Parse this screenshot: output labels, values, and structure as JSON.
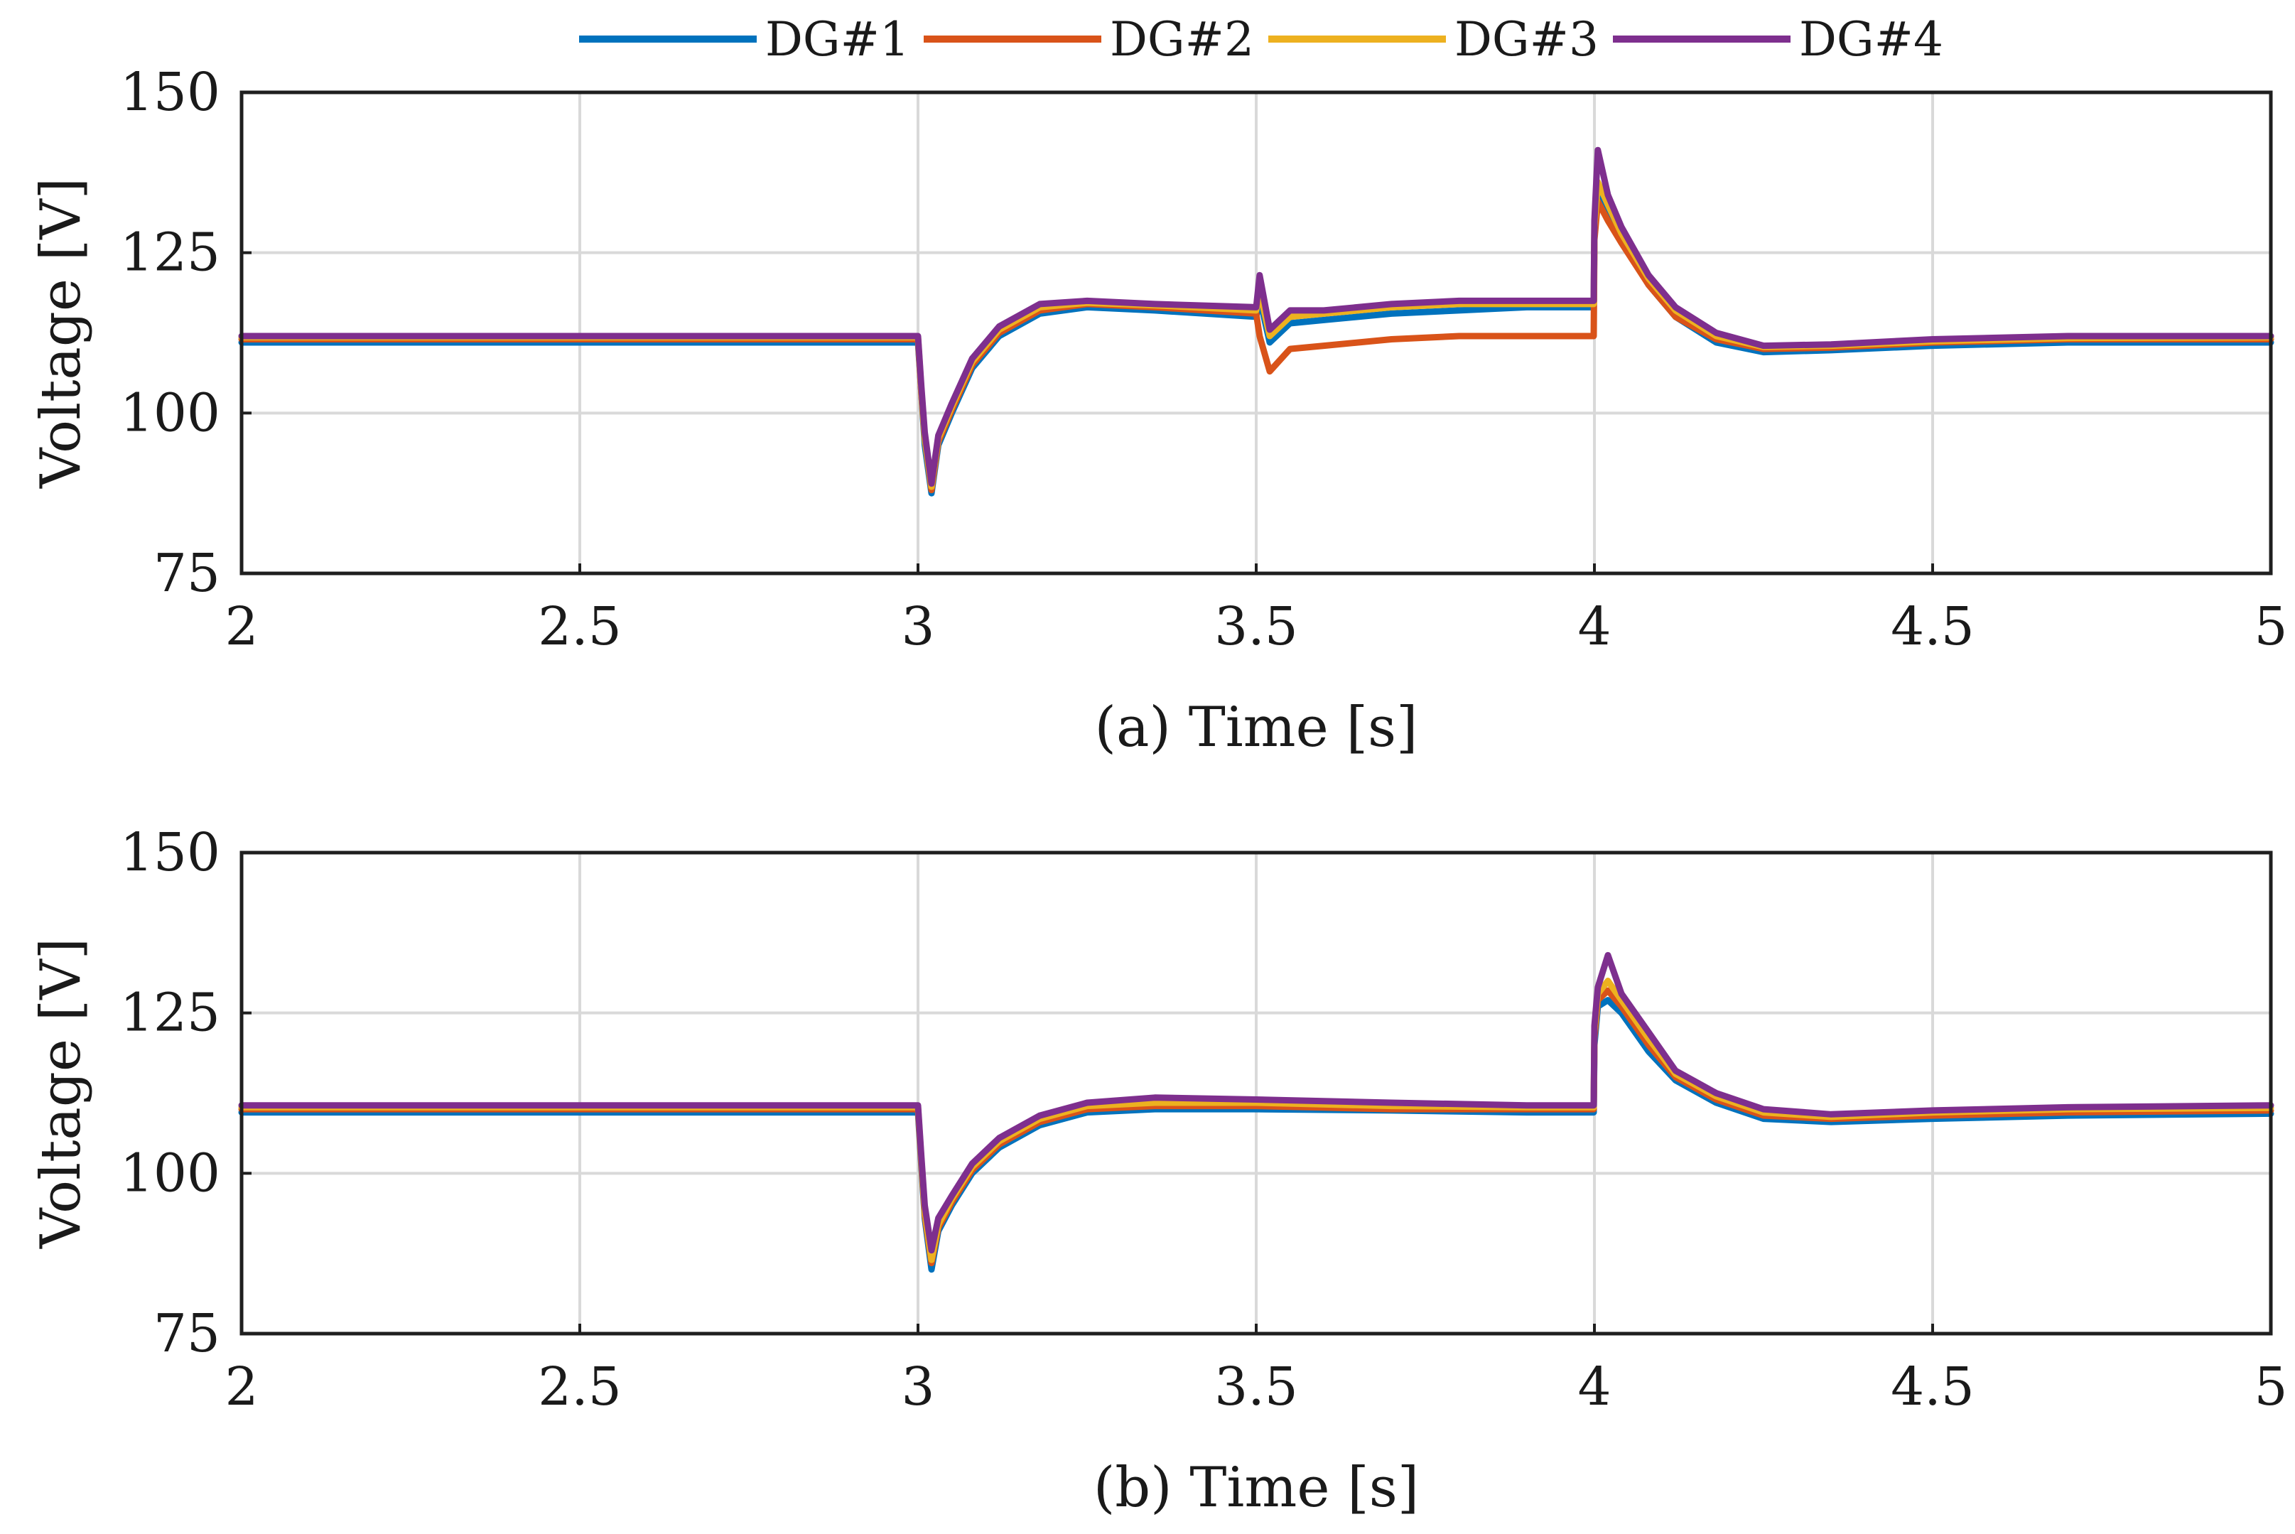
{
  "legend": [
    {
      "name": "DG#1",
      "color": "#0072BD"
    },
    {
      "name": "DG#2",
      "color": "#D95319"
    },
    {
      "name": "DG#3",
      "color": "#EDB120"
    },
    {
      "name": "DG#4",
      "color": "#7E2F8E"
    }
  ],
  "chart_data": [
    {
      "type": "line",
      "panel": "a",
      "xlabel": "(a) Time [s]",
      "ylabel": "Voltage [V]",
      "xlim": [
        2,
        5
      ],
      "ylim": [
        75,
        150
      ],
      "xticks": [
        "2",
        "2.5",
        "3",
        "3.5",
        "4",
        "4.5",
        "5"
      ],
      "yticks": [
        "75",
        "100",
        "125",
        "150"
      ],
      "grid": true,
      "series": [
        {
          "name": "DG#1",
          "color": "#0072BD",
          "x": [
            2.0,
            3.0,
            3.005,
            3.01,
            3.02,
            3.03,
            3.05,
            3.08,
            3.12,
            3.18,
            3.25,
            3.35,
            3.5,
            3.505,
            3.52,
            3.55,
            3.6,
            3.7,
            3.8,
            3.9,
            3.999,
            4.0,
            4.005,
            4.02,
            4.04,
            4.08,
            4.12,
            4.18,
            4.25,
            4.35,
            4.5,
            4.7,
            5.0
          ],
          "y": [
            111,
            111,
            103,
            95,
            87.5,
            95,
            100,
            107,
            112,
            115.5,
            116.5,
            116,
            115,
            118,
            111,
            114,
            114.5,
            115.5,
            116,
            116.5,
            116.5,
            128,
            134,
            131,
            127,
            120,
            115,
            111,
            109.5,
            109.8,
            110.5,
            111,
            111
          ]
        },
        {
          "name": "DG#2",
          "color": "#D95319",
          "x": [
            2.0,
            3.0,
            3.005,
            3.01,
            3.02,
            3.03,
            3.05,
            3.08,
            3.12,
            3.18,
            3.25,
            3.35,
            3.5,
            3.505,
            3.52,
            3.55,
            3.6,
            3.7,
            3.8,
            3.9,
            3.999,
            4.0,
            4.005,
            4.02,
            4.04,
            4.08,
            4.12,
            4.18,
            4.25,
            4.35,
            4.5,
            4.7,
            5.0
          ],
          "y": [
            111.5,
            111.5,
            103,
            96,
            88,
            95.5,
            100.5,
            107.5,
            112.5,
            116,
            117,
            116.5,
            115.5,
            112,
            106.5,
            110,
            110.5,
            111.5,
            112,
            112,
            112,
            127,
            133,
            130,
            126.5,
            120,
            115,
            111.5,
            110,
            110.2,
            111,
            111.5,
            111.5
          ]
        },
        {
          "name": "DG#3",
          "color": "#EDB120",
          "x": [
            2.0,
            3.0,
            3.005,
            3.01,
            3.02,
            3.03,
            3.05,
            3.08,
            3.12,
            3.18,
            3.25,
            3.35,
            3.5,
            3.505,
            3.52,
            3.55,
            3.6,
            3.7,
            3.8,
            3.9,
            3.999,
            4.0,
            4.005,
            4.02,
            4.04,
            4.08,
            4.12,
            4.18,
            4.25,
            4.35,
            4.5,
            4.7,
            5.0
          ],
          "y": [
            111.8,
            111.8,
            103.5,
            96,
            88.5,
            96,
            101,
            108,
            113,
            116.5,
            117.2,
            116.8,
            116,
            119,
            112,
            115,
            115.5,
            116.5,
            117,
            117,
            117,
            129,
            136,
            132.5,
            128,
            121,
            116,
            112,
            110.3,
            110.5,
            111.2,
            111.7,
            111.8
          ]
        },
        {
          "name": "DG#4",
          "color": "#7E2F8E",
          "x": [
            2.0,
            3.0,
            3.005,
            3.01,
            3.02,
            3.03,
            3.05,
            3.08,
            3.12,
            3.18,
            3.25,
            3.35,
            3.5,
            3.505,
            3.52,
            3.55,
            3.6,
            3.7,
            3.8,
            3.9,
            3.999,
            4.0,
            4.005,
            4.02,
            4.04,
            4.08,
            4.12,
            4.18,
            4.25,
            4.35,
            4.5,
            4.7,
            5.0
          ],
          "y": [
            112,
            112,
            104,
            97,
            89,
            96.5,
            101.5,
            108.5,
            113.5,
            117,
            117.5,
            117,
            116.5,
            121.5,
            113,
            116,
            116,
            117,
            117.5,
            117.5,
            117.5,
            130,
            141,
            134,
            129,
            121.5,
            116.5,
            112.5,
            110.5,
            110.7,
            111.5,
            112,
            112
          ]
        }
      ]
    },
    {
      "type": "line",
      "panel": "b",
      "xlabel": "(b) Time [s]",
      "ylabel": "Voltage [V]",
      "xlim": [
        2,
        5
      ],
      "ylim": [
        75,
        150
      ],
      "xticks": [
        "2",
        "2.5",
        "3",
        "3.5",
        "4",
        "4.5",
        "5"
      ],
      "yticks": [
        "75",
        "100",
        "125",
        "150"
      ],
      "grid": true,
      "series": [
        {
          "name": "DG#1",
          "color": "#0072BD",
          "x": [
            2.0,
            3.0,
            3.005,
            3.01,
            3.02,
            3.03,
            3.05,
            3.08,
            3.12,
            3.18,
            3.25,
            3.35,
            3.5,
            3.7,
            3.9,
            3.999,
            4.0,
            4.005,
            4.02,
            4.04,
            4.08,
            4.12,
            4.18,
            4.25,
            4.35,
            4.5,
            4.7,
            5.0
          ],
          "y": [
            109.5,
            109.5,
            101,
            93,
            85,
            91,
            95,
            100,
            104,
            107.5,
            109.5,
            110,
            110,
            109.8,
            109.5,
            109.5,
            120,
            126,
            127,
            125,
            119,
            114.5,
            111,
            108.5,
            108,
            108.5,
            109,
            109.3
          ]
        },
        {
          "name": "DG#2",
          "color": "#D95319",
          "x": [
            2.0,
            3.0,
            3.005,
            3.01,
            3.02,
            3.03,
            3.05,
            3.08,
            3.12,
            3.18,
            3.25,
            3.35,
            3.5,
            3.7,
            3.9,
            3.999,
            4.0,
            4.005,
            4.02,
            4.04,
            4.08,
            4.12,
            4.18,
            4.25,
            4.35,
            4.5,
            4.7,
            5.0
          ],
          "y": [
            110,
            110,
            101.5,
            93.5,
            86,
            91.5,
            95.5,
            100.5,
            104.5,
            108,
            110,
            110.5,
            110.5,
            110,
            110,
            110,
            121,
            127,
            128.5,
            126,
            120,
            115,
            111.5,
            109,
            108.5,
            109,
            109.5,
            109.8
          ]
        },
        {
          "name": "DG#3",
          "color": "#EDB120",
          "x": [
            2.0,
            3.0,
            3.005,
            3.01,
            3.02,
            3.03,
            3.05,
            3.08,
            3.12,
            3.18,
            3.25,
            3.35,
            3.5,
            3.7,
            3.9,
            3.999,
            4.0,
            4.005,
            4.02,
            4.04,
            4.08,
            4.12,
            4.18,
            4.25,
            4.35,
            4.5,
            4.7,
            5.0
          ],
          "y": [
            110.3,
            110.3,
            102,
            94,
            86.5,
            92,
            96,
            101,
            105,
            108.5,
            110.5,
            111,
            111,
            110.5,
            110.3,
            110.3,
            122,
            128,
            130,
            127,
            121,
            115.5,
            112,
            109.5,
            108.8,
            109.5,
            110,
            110.2
          ]
        },
        {
          "name": "DG#4",
          "color": "#7E2F8E",
          "x": [
            2.0,
            3.0,
            3.005,
            3.01,
            3.02,
            3.03,
            3.05,
            3.08,
            3.12,
            3.18,
            3.25,
            3.35,
            3.5,
            3.7,
            3.9,
            3.999,
            4.0,
            4.005,
            4.02,
            4.04,
            4.08,
            4.12,
            4.18,
            4.25,
            4.35,
            4.5,
            4.7,
            5.0
          ],
          "y": [
            110.6,
            110.6,
            102.5,
            95,
            88,
            93,
            96.5,
            101.5,
            105.5,
            109,
            111,
            111.8,
            111.5,
            111,
            110.6,
            110.6,
            123,
            129,
            134,
            128,
            122,
            116,
            112.5,
            110,
            109.2,
            109.8,
            110.3,
            110.6
          ]
        }
      ]
    }
  ]
}
